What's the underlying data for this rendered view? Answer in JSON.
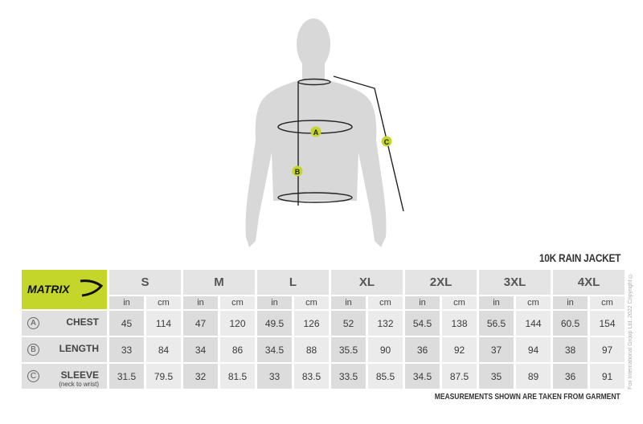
{
  "title": "10K RAIN JACKET",
  "brand": "MATRIX",
  "colors": {
    "accent": "#c5d62a",
    "silhouette": "#d8d8d8"
  },
  "figure_labels": {
    "a": "A",
    "b": "B",
    "c": "C"
  },
  "sizes": [
    "S",
    "M",
    "L",
    "XL",
    "2XL",
    "3XL",
    "4XL"
  ],
  "units": {
    "in": "in",
    "cm": "cm"
  },
  "rows": [
    {
      "marker": "A",
      "label": "CHEST",
      "note": "",
      "values": [
        [
          "45",
          "114"
        ],
        [
          "47",
          "120"
        ],
        [
          "49.5",
          "126"
        ],
        [
          "52",
          "132"
        ],
        [
          "54.5",
          "138"
        ],
        [
          "56.5",
          "144"
        ],
        [
          "60.5",
          "154"
        ]
      ]
    },
    {
      "marker": "B",
      "label": "LENGTH",
      "note": "",
      "values": [
        [
          "33",
          "84"
        ],
        [
          "34",
          "86"
        ],
        [
          "34.5",
          "88"
        ],
        [
          "35.5",
          "90"
        ],
        [
          "36",
          "92"
        ],
        [
          "37",
          "94"
        ],
        [
          "38",
          "97"
        ]
      ]
    },
    {
      "marker": "C",
      "label": "SLEEVE",
      "note": "(neck to wrist)",
      "values": [
        [
          "31.5",
          "79.5"
        ],
        [
          "32",
          "81.5"
        ],
        [
          "33",
          "83.5"
        ],
        [
          "33.5",
          "85.5"
        ],
        [
          "34.5",
          "87.5"
        ],
        [
          "35",
          "89"
        ],
        [
          "36",
          "91"
        ]
      ]
    }
  ],
  "footer": "MEASUREMENTS SHOWN ARE TAKEN FROM GARMENT",
  "copyright": "Fox International Group Ltd. 2022 Copyright ©"
}
